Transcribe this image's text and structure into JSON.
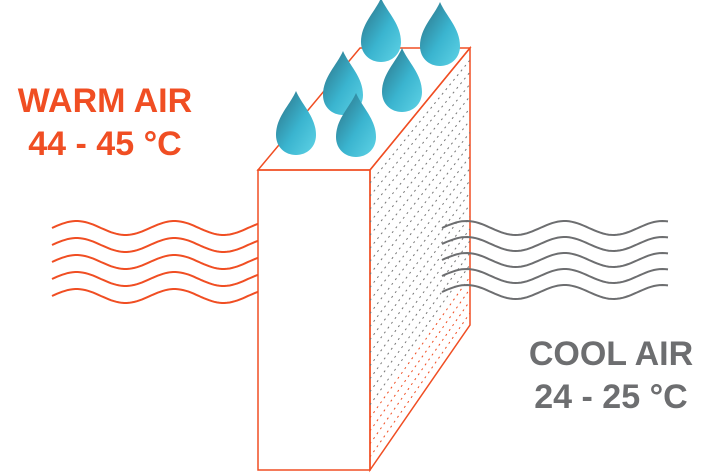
{
  "warm_air": {
    "label": "WARM AIR",
    "temperature": "44 - 45 °C",
    "color": "#f04e23"
  },
  "cool_air": {
    "label": "COOL AIR",
    "temperature": "24 - 25 °C",
    "color": "#6d6e70"
  },
  "cooling_pad": {
    "outline_color": "#f04e23",
    "water_drop_count": 6,
    "water_color": "#3ec1da"
  }
}
